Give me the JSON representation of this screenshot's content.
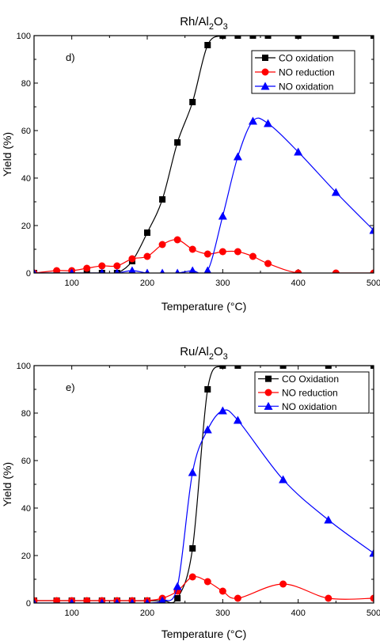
{
  "chart_data": [
    {
      "type": "line",
      "title_main": "Rh/Al",
      "title_sub1": "2",
      "title_mid": "O",
      "title_sub2": "3",
      "panel_label": "d)",
      "xlabel": "Temperature (°C)",
      "ylabel": "Yield (%)",
      "xlim": [
        50,
        500
      ],
      "ylim": [
        0,
        100
      ],
      "xticks": [
        100,
        200,
        300,
        400,
        500
      ],
      "yticks": [
        0,
        20,
        40,
        60,
        80,
        100
      ],
      "legend_position": "top-right",
      "series": [
        {
          "name": "CO oxidation",
          "color": "#000000",
          "marker": "square",
          "points": [
            [
              50,
              0
            ],
            [
              80,
              0
            ],
            [
              100,
              0
            ],
            [
              120,
              0
            ],
            [
              140,
              0
            ],
            [
              160,
              0
            ],
            [
              180,
              5
            ],
            [
              200,
              17
            ],
            [
              220,
              31
            ],
            [
              240,
              55
            ],
            [
              260,
              72
            ],
            [
              280,
              96
            ],
            [
              300,
              100
            ],
            [
              320,
              100
            ],
            [
              340,
              100
            ],
            [
              360,
              100
            ],
            [
              400,
              100
            ],
            [
              450,
              100
            ],
            [
              500,
              100
            ]
          ]
        },
        {
          "name": "NO reduction",
          "color": "#ff0000",
          "marker": "circle",
          "points": [
            [
              50,
              0
            ],
            [
              80,
              1
            ],
            [
              100,
              1
            ],
            [
              120,
              2
            ],
            [
              140,
              3
            ],
            [
              160,
              3
            ],
            [
              180,
              6
            ],
            [
              200,
              7
            ],
            [
              220,
              12
            ],
            [
              240,
              14
            ],
            [
              260,
              10
            ],
            [
              280,
              8
            ],
            [
              300,
              9
            ],
            [
              320,
              9
            ],
            [
              340,
              7
            ],
            [
              360,
              4
            ],
            [
              400,
              0
            ],
            [
              450,
              0
            ],
            [
              500,
              0
            ]
          ]
        },
        {
          "name": "NO oxidation",
          "color": "#0000ff",
          "marker": "triangle",
          "points": [
            [
              50,
              0
            ],
            [
              100,
              0
            ],
            [
              140,
              0
            ],
            [
              160,
              0
            ],
            [
              180,
              1
            ],
            [
              200,
              0
            ],
            [
              220,
              0
            ],
            [
              240,
              0
            ],
            [
              260,
              1
            ],
            [
              280,
              1
            ],
            [
              300,
              24
            ],
            [
              320,
              49
            ],
            [
              340,
              64
            ],
            [
              360,
              63
            ],
            [
              400,
              51
            ],
            [
              450,
              34
            ],
            [
              500,
              18
            ]
          ]
        }
      ]
    },
    {
      "type": "line",
      "title_main": "Ru/Al",
      "title_sub1": "2",
      "title_mid": "O",
      "title_sub2": "3",
      "panel_label": "e)",
      "xlabel": "Temperature (°C)",
      "ylabel": "Yield (%)",
      "xlim": [
        50,
        500
      ],
      "ylim": [
        0,
        100
      ],
      "xticks": [
        100,
        200,
        300,
        400,
        500
      ],
      "yticks": [
        0,
        20,
        40,
        60,
        80,
        100
      ],
      "legend_position": "top-right",
      "series": [
        {
          "name": "CO Oxidation",
          "color": "#000000",
          "marker": "square",
          "points": [
            [
              50,
              1
            ],
            [
              80,
              1
            ],
            [
              100,
              1
            ],
            [
              120,
              1
            ],
            [
              140,
              1
            ],
            [
              160,
              1
            ],
            [
              180,
              1
            ],
            [
              200,
              1
            ],
            [
              220,
              1
            ],
            [
              240,
              2
            ],
            [
              260,
              23
            ],
            [
              280,
              90
            ],
            [
              300,
              100
            ],
            [
              320,
              100
            ],
            [
              380,
              100
            ],
            [
              440,
              100
            ],
            [
              500,
              100
            ]
          ]
        },
        {
          "name": "NO reduction",
          "color": "#ff0000",
          "marker": "circle",
          "points": [
            [
              50,
              1
            ],
            [
              80,
              1
            ],
            [
              100,
              1
            ],
            [
              120,
              1
            ],
            [
              140,
              1
            ],
            [
              160,
              1
            ],
            [
              180,
              1
            ],
            [
              200,
              1
            ],
            [
              220,
              2
            ],
            [
              240,
              5
            ],
            [
              260,
              11
            ],
            [
              280,
              9
            ],
            [
              300,
              5
            ],
            [
              320,
              2
            ],
            [
              380,
              8
            ],
            [
              440,
              2
            ],
            [
              500,
              2
            ]
          ]
        },
        {
          "name": "NO oxidation",
          "color": "#0000ff",
          "marker": "triangle",
          "points": [
            [
              50,
              0
            ],
            [
              100,
              0
            ],
            [
              140,
              0
            ],
            [
              160,
              0
            ],
            [
              180,
              0
            ],
            [
              200,
              0
            ],
            [
              220,
              1
            ],
            [
              240,
              7
            ],
            [
              260,
              55
            ],
            [
              280,
              73
            ],
            [
              300,
              81
            ],
            [
              320,
              77
            ],
            [
              380,
              52
            ],
            [
              440,
              35
            ],
            [
              500,
              21
            ]
          ]
        }
      ]
    }
  ]
}
